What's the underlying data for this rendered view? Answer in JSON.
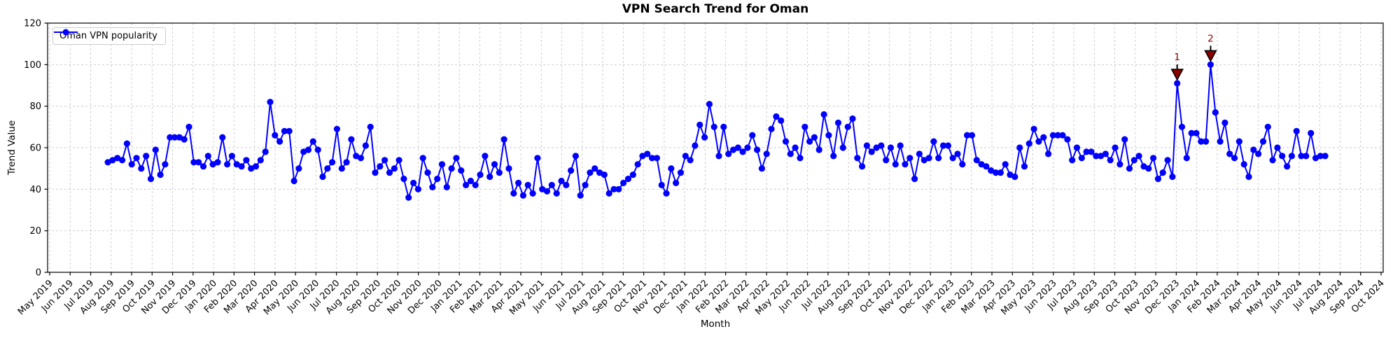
{
  "chart_data": {
    "type": "line",
    "title": "VPN Search Trend for Oman",
    "xlabel": "Month",
    "ylabel": "Trend Value",
    "ylim": [
      0,
      120
    ],
    "yticks": [
      0,
      20,
      40,
      60,
      80,
      100,
      120
    ],
    "grid": true,
    "legend": {
      "position": "upper left",
      "entries": [
        {
          "label": "Oman VPN popularity",
          "color": "#0000ff",
          "marker": "circle"
        }
      ]
    },
    "x_tick_labels": [
      "May 2019",
      "Jun 2019",
      "Jul 2019",
      "Aug 2019",
      "Sep 2019",
      "Oct 2019",
      "Nov 2019",
      "Dec 2019",
      "Jan 2020",
      "Feb 2020",
      "Mar 2020",
      "Apr 2020",
      "May 2020",
      "Jun 2020",
      "Jul 2020",
      "Aug 2020",
      "Sep 2020",
      "Oct 2020",
      "Nov 2020",
      "Dec 2020",
      "Jan 2021",
      "Feb 2021",
      "Mar 2021",
      "Apr 2021",
      "May 2021",
      "Jun 2021",
      "Jul 2021",
      "Aug 2021",
      "Sep 2021",
      "Oct 2021",
      "Nov 2021",
      "Dec 2021",
      "Jan 2022",
      "Feb 2022",
      "Mar 2022",
      "Apr 2022",
      "May 2022",
      "Jun 2022",
      "Jul 2022",
      "Aug 2022",
      "Sep 2022",
      "Oct 2022",
      "Nov 2022",
      "Dec 2022",
      "Jan 2023",
      "Feb 2023",
      "Mar 2023",
      "Apr 2023",
      "May 2023",
      "Jun 2023",
      "Jul 2023",
      "Aug 2023",
      "Sep 2023",
      "Oct 2023",
      "Nov 2023",
      "Dec 2023",
      "Jan 2024",
      "Feb 2024",
      "Mar 2024",
      "Apr 2024",
      "May 2024",
      "Jun 2024",
      "Jul 2024",
      "Aug 2024",
      "Sep 2024",
      "Oct 2024"
    ],
    "data_start_month_index": 2.84,
    "data_end_month_index": 62.27,
    "series": [
      {
        "name": "Oman VPN popularity",
        "color": "#0000ff",
        "values": [
          53,
          54,
          55,
          54,
          62,
          52,
          55,
          50,
          56,
          45,
          59,
          47,
          52,
          65,
          65,
          65,
          64,
          70,
          53,
          53,
          51,
          56,
          52,
          53,
          65,
          52,
          56,
          52,
          51,
          54,
          50,
          51,
          54,
          58,
          82,
          66,
          63,
          68,
          68,
          44,
          50,
          58,
          59,
          63,
          59,
          46,
          50,
          53,
          69,
          50,
          53,
          64,
          56,
          55,
          61,
          70,
          48,
          51,
          54,
          48,
          50,
          54,
          45,
          36,
          43,
          40,
          55,
          48,
          41,
          45,
          52,
          41,
          50,
          55,
          49,
          42,
          44,
          42,
          47,
          56,
          46,
          52,
          48,
          64,
          50,
          38,
          43,
          37,
          42,
          38,
          55,
          40,
          39,
          42,
          38,
          44,
          42,
          49,
          56,
          37,
          42,
          48,
          50,
          48,
          47,
          38,
          40,
          40,
          43,
          45,
          47,
          52,
          56,
          57,
          55,
          55,
          42,
          38,
          50,
          43,
          48,
          56,
          54,
          61,
          71,
          65,
          81,
          70,
          56,
          70,
          57,
          59,
          60,
          58,
          60,
          66,
          59,
          50,
          57,
          69,
          75,
          73,
          63,
          57,
          60,
          55,
          70,
          63,
          65,
          59,
          76,
          66,
          56,
          72,
          60,
          70,
          74,
          55,
          51,
          61,
          58,
          60,
          61,
          54,
          60,
          52,
          61,
          52,
          55,
          45,
          57,
          54,
          55,
          63,
          55,
          61,
          61,
          55,
          57,
          52,
          66,
          66,
          54,
          52,
          51,
          49,
          48,
          48,
          52,
          47,
          46,
          60,
          51,
          62,
          69,
          63,
          65,
          57,
          66,
          66,
          66,
          64,
          54,
          60,
          55,
          58,
          58,
          56,
          56,
          57,
          54,
          60,
          52,
          64,
          50,
          54,
          56,
          51,
          50,
          55,
          45,
          48,
          54,
          46,
          91,
          70,
          55,
          67,
          67,
          63,
          63,
          100,
          77,
          63,
          72,
          57,
          55,
          63,
          52,
          46,
          59,
          57,
          63,
          70,
          54,
          60,
          56,
          51,
          56,
          68,
          56,
          56,
          67,
          55,
          56,
          56
        ]
      }
    ],
    "annotations": [
      {
        "label": "1",
        "point_index": 224,
        "value": 91,
        "marker": "triangle-down",
        "color": "#8b0000"
      },
      {
        "label": "2",
        "point_index": 231,
        "value": 100,
        "marker": "triangle-down",
        "color": "#8b0000"
      }
    ]
  },
  "colors": {
    "line": "#0000ff",
    "annotation": "#8b0000",
    "grid": "#c9c9c9",
    "spine": "#000000",
    "background": "#ffffff"
  }
}
